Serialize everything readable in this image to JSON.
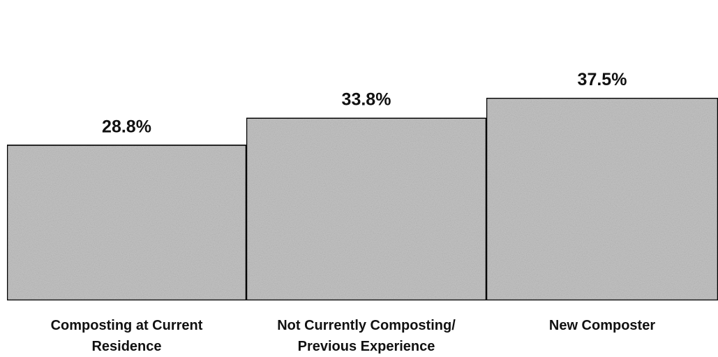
{
  "chart_data": {
    "type": "bar",
    "categories": [
      [
        "Composting at Current",
        "Residence"
      ],
      [
        "Not Currently Composting/",
        "Previous Experience"
      ],
      [
        "New Composter"
      ]
    ],
    "values": [
      28.8,
      33.8,
      37.5
    ],
    "value_labels": [
      "28.8%",
      "33.8%",
      "37.5%"
    ],
    "title": "",
    "xlabel": "",
    "ylabel": "",
    "ylim": [
      0,
      40
    ],
    "grid": false,
    "legend": "none",
    "bar_fill": "#c4c4c4",
    "bar_outline": "#000000"
  }
}
